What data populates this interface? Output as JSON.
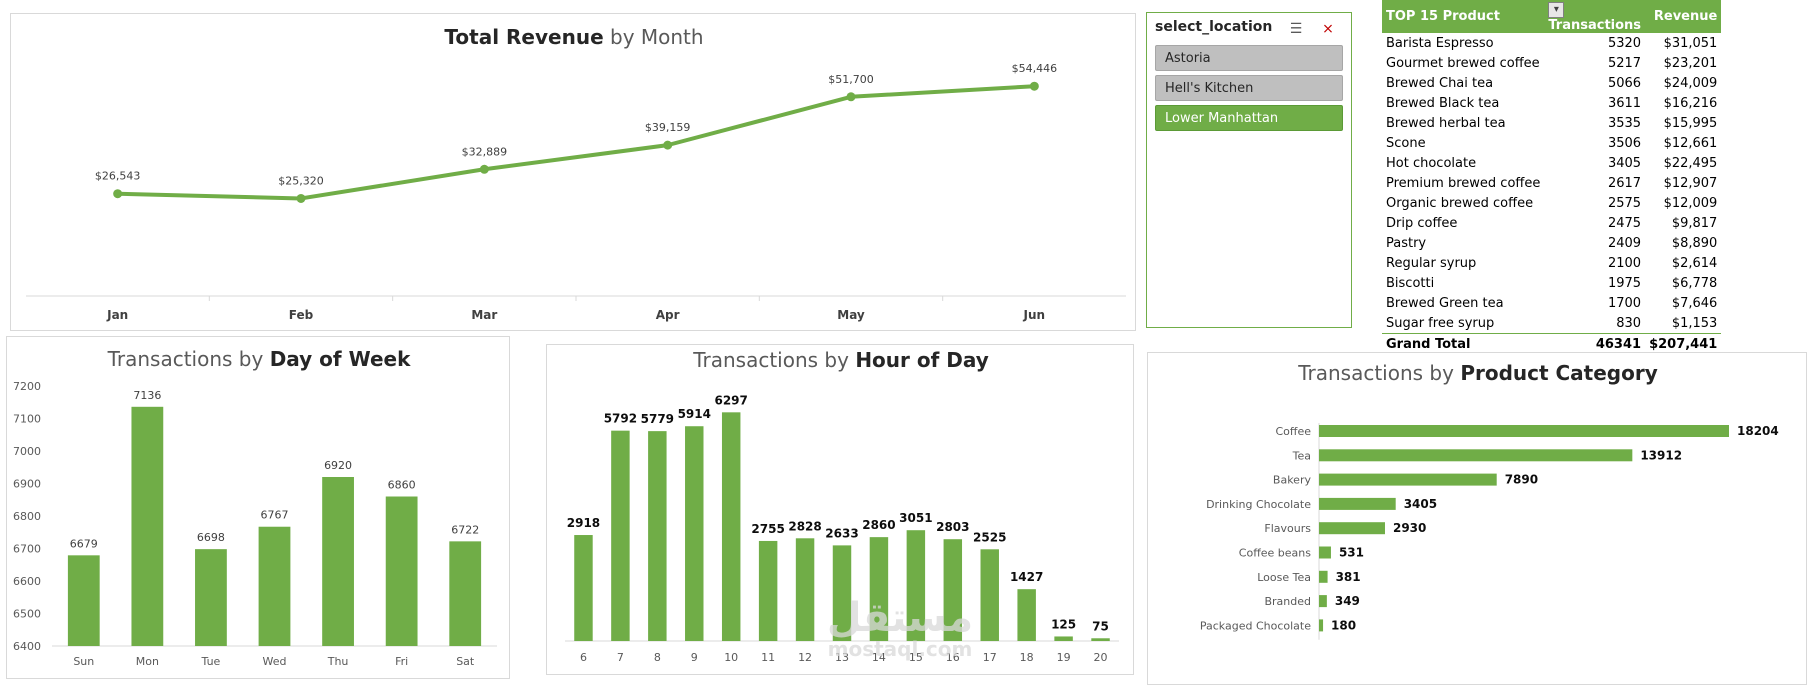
{
  "slicer": {
    "title": "select_location",
    "multiselect_icon": "multiselect-icon",
    "clear_filter_icon": "clear-filter-icon",
    "items": [
      {
        "label": "Astoria",
        "selected": false
      },
      {
        "label": "Hell's Kitchen",
        "selected": false
      },
      {
        "label": "Lower Manhattan",
        "selected": true
      }
    ]
  },
  "pivot": {
    "headers": [
      "TOP 15 Product",
      "Transactions",
      "Revenue"
    ],
    "filter_icon": "filter-icon",
    "rows": [
      [
        "Barista Espresso",
        "5320",
        "$31,051"
      ],
      [
        "Gourmet brewed coffee",
        "5217",
        "$23,201"
      ],
      [
        "Brewed Chai tea",
        "5066",
        "$24,009"
      ],
      [
        "Brewed Black tea",
        "3611",
        "$16,216"
      ],
      [
        "Brewed herbal tea",
        "3535",
        "$15,995"
      ],
      [
        "Scone",
        "3506",
        "$12,661"
      ],
      [
        "Hot chocolate",
        "3405",
        "$22,495"
      ],
      [
        "Premium brewed coffee",
        "2617",
        "$12,907"
      ],
      [
        "Organic brewed coffee",
        "2575",
        "$12,009"
      ],
      [
        "Drip coffee",
        "2475",
        "$9,817"
      ],
      [
        "Pastry",
        "2409",
        "$8,890"
      ],
      [
        "Regular syrup",
        "2100",
        "$2,614"
      ],
      [
        "Biscotti",
        "1975",
        "$6,778"
      ],
      [
        "Brewed Green tea",
        "1700",
        "$7,646"
      ],
      [
        "Sugar free syrup",
        "830",
        "$1,153"
      ]
    ],
    "total": [
      "Grand Total",
      "46341",
      "$207,441"
    ]
  },
  "watermark": {
    "arabic": "مستقل",
    "latin": "mostaql.com"
  },
  "chart_data": [
    {
      "id": "revenue",
      "type": "line",
      "title_bold": "Total Revenue",
      "title_rest": " by Month",
      "categories": [
        "Jan",
        "Feb",
        "Mar",
        "Apr",
        "May",
        "Jun"
      ],
      "values": [
        26543,
        25320,
        32889,
        39159,
        51700,
        54446
      ],
      "value_labels": [
        "$26,543",
        "$25,320",
        "$32,889",
        "$39,159",
        "$51,700",
        "$54,446"
      ],
      "color": "#70ad47"
    },
    {
      "id": "dow",
      "type": "bar",
      "title_rest": "Transactions by ",
      "title_bold": "Day of Week",
      "categories": [
        "Sun",
        "Mon",
        "Tue",
        "Wed",
        "Thu",
        "Fri",
        "Sat"
      ],
      "values": [
        6679,
        7136,
        6698,
        6767,
        6920,
        6860,
        6722
      ],
      "ylim": [
        6400,
        7200
      ],
      "yticks": [
        6400,
        6500,
        6600,
        6700,
        6800,
        6900,
        7000,
        7100,
        7200
      ],
      "color": "#70ad47"
    },
    {
      "id": "hour",
      "type": "bar",
      "title_rest": "Transactions by ",
      "title_bold": "Hour of Day",
      "categories": [
        "6",
        "7",
        "8",
        "9",
        "10",
        "11",
        "12",
        "13",
        "14",
        "15",
        "16",
        "17",
        "18",
        "19",
        "20"
      ],
      "values": [
        2918,
        5792,
        5779,
        5914,
        6297,
        2755,
        2828,
        2633,
        2860,
        3051,
        2803,
        2525,
        1427,
        125,
        75
      ],
      "color": "#70ad47"
    },
    {
      "id": "category",
      "type": "bar",
      "orientation": "horizontal",
      "title_rest": "Transactions by ",
      "title_bold": "Product Category",
      "categories": [
        "Coffee",
        "Tea",
        "Bakery",
        "Drinking Chocolate",
        "Flavours",
        "Coffee beans",
        "Loose Tea",
        "Branded",
        "Packaged Chocolate"
      ],
      "values": [
        18204,
        13912,
        7890,
        3405,
        2930,
        531,
        381,
        349,
        180
      ],
      "color": "#70ad47"
    }
  ]
}
